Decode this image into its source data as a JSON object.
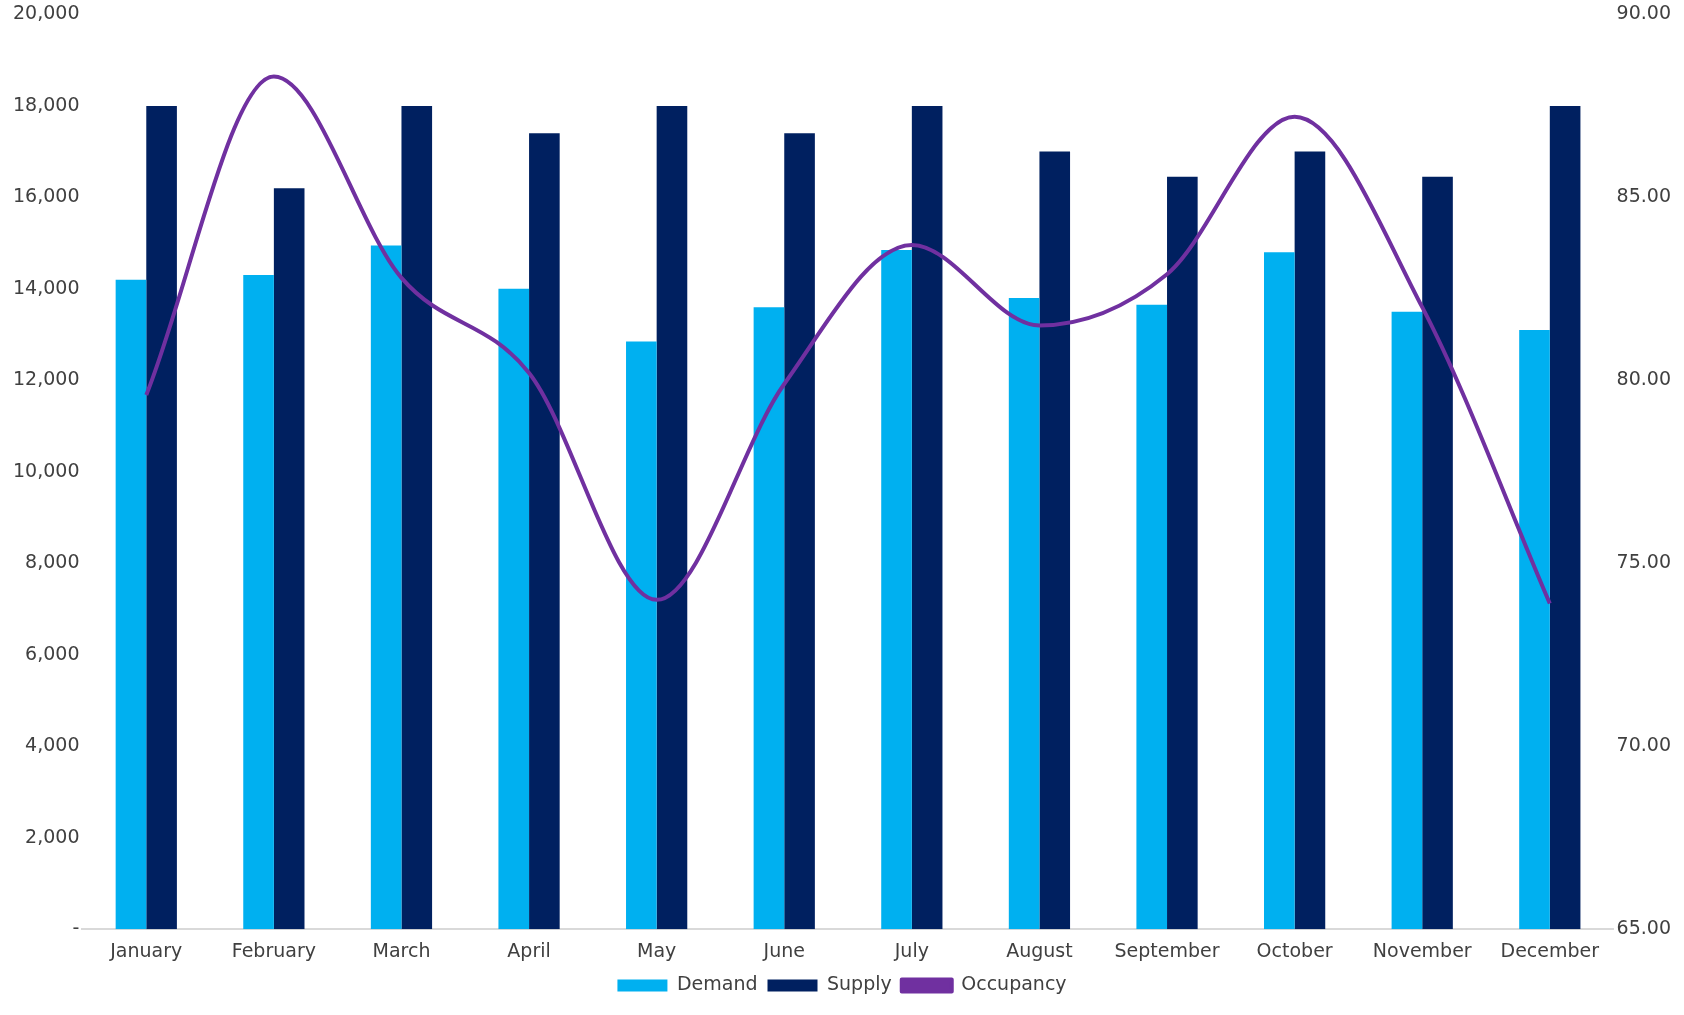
{
  "chart_data": {
    "type": "bar",
    "categories": [
      "January",
      "February",
      "March",
      "April",
      "May",
      "June",
      "July",
      "August",
      "September",
      "October",
      "November",
      "December"
    ],
    "series": [
      {
        "name": "Demand",
        "color": "#00b0f0",
        "values": [
          14200,
          14300,
          14950,
          14000,
          12850,
          13600,
          14850,
          13800,
          13650,
          14800,
          13500,
          13100
        ]
      },
      {
        "name": "Supply",
        "color": "#002060",
        "values": [
          18000,
          16200,
          18000,
          17400,
          18000,
          17400,
          18000,
          17000,
          16450,
          17000,
          16450,
          18000
        ]
      },
      {
        "name": "Occupancy",
        "type": "line",
        "axis": "y2",
        "color": "#7030a0",
        "values": [
          79.6,
          88.3,
          82.8,
          80.2,
          74.0,
          79.9,
          83.7,
          81.5,
          82.9,
          87.2,
          82.0,
          73.9
        ]
      }
    ],
    "ylim": [
      0,
      20000
    ],
    "yticks": [
      {
        "value": 0,
        "label": "-"
      },
      {
        "value": 2000,
        "label": "2,000"
      },
      {
        "value": 4000,
        "label": "4,000"
      },
      {
        "value": 6000,
        "label": "6,000"
      },
      {
        "value": 8000,
        "label": "8,000"
      },
      {
        "value": 10000,
        "label": "10,000"
      },
      {
        "value": 12000,
        "label": "12,000"
      },
      {
        "value": 14000,
        "label": "14,000"
      },
      {
        "value": 16000,
        "label": "16,000"
      },
      {
        "value": 18000,
        "label": "18,000"
      },
      {
        "value": 20000,
        "label": "20,000"
      }
    ],
    "y2lim": [
      65,
      90
    ],
    "y2ticks": [
      {
        "value": 65,
        "label": "65.00"
      },
      {
        "value": 70,
        "label": "70.00"
      },
      {
        "value": 75,
        "label": "75.00"
      },
      {
        "value": 80,
        "label": "80.00"
      },
      {
        "value": 85,
        "label": "85.00"
      },
      {
        "value": 90,
        "label": "90.00"
      }
    ],
    "grid": false,
    "legend": "bottom"
  }
}
